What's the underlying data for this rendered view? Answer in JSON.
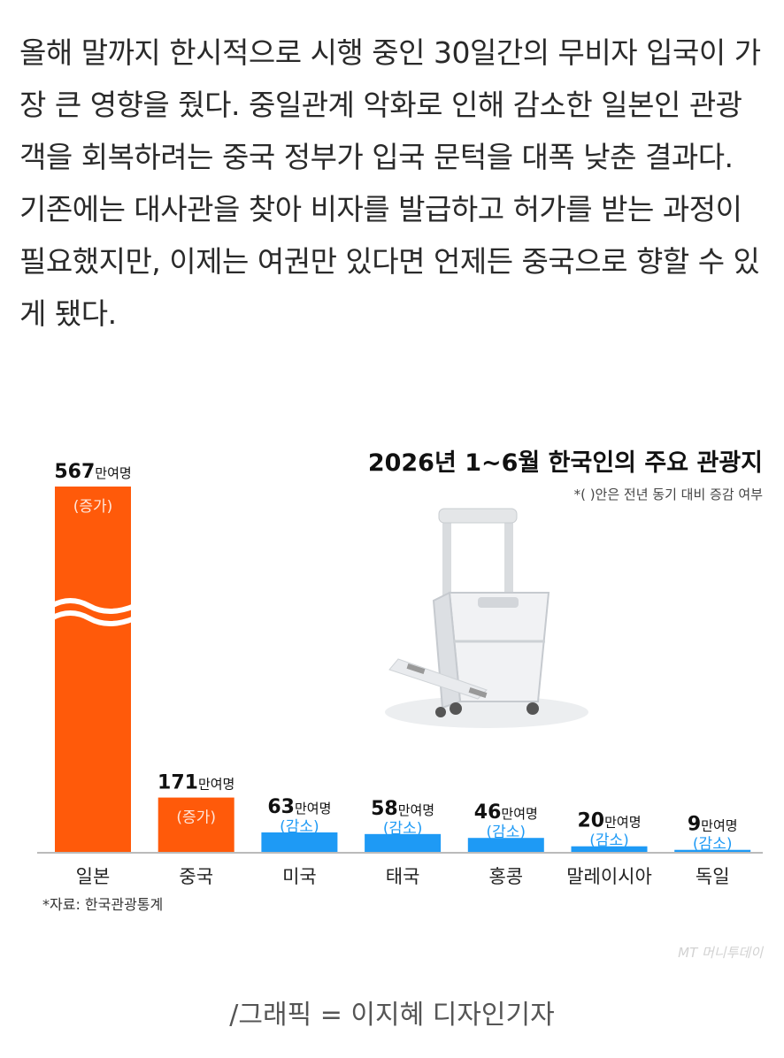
{
  "article": {
    "text": "올해 말까지 한시적으로 시행 중인 30일간의 무비자 입국이 가장 큰 영향을 줬다. 중일관계 악화로 인해 감소한 일본인 관광객을 회복하려는 중국 정부가 입국 문턱을 대폭 낮춘 결과다. 기존에는 대사관을 찾아 비자를 발급하고 허가를 받는 과정이 필요했지만, 이제는 여권만 있다면 언제든 중국으로 향할 수 있게 됐다."
  },
  "chart_data": {
    "type": "bar",
    "title": "2026년 1~6월 한국인의 주요 관광지",
    "subtitle": "*( )안은 전년 동기 대비 증감 여부",
    "source": "*자료: 한국관광통계",
    "unit": "만여명",
    "categories": [
      "일본",
      "중국",
      "미국",
      "태국",
      "홍콩",
      "말레이시아",
      "독일"
    ],
    "values": [
      567,
      171,
      63,
      58,
      46,
      20,
      9
    ],
    "changes": [
      "(증가)",
      "(증가)",
      "(감소)",
      "(감소)",
      "(감소)",
      "(감소)",
      "(감소)"
    ],
    "axis_break": "일본",
    "colors": {
      "increase": "#ff5a0a",
      "decrease": "#1e9af5",
      "axis": "#bbbbbb"
    },
    "illustration": "suitcase-icon"
  },
  "watermark": "MT 머니투데이",
  "caption": "/그래픽 = 이지혜 디자인기자"
}
